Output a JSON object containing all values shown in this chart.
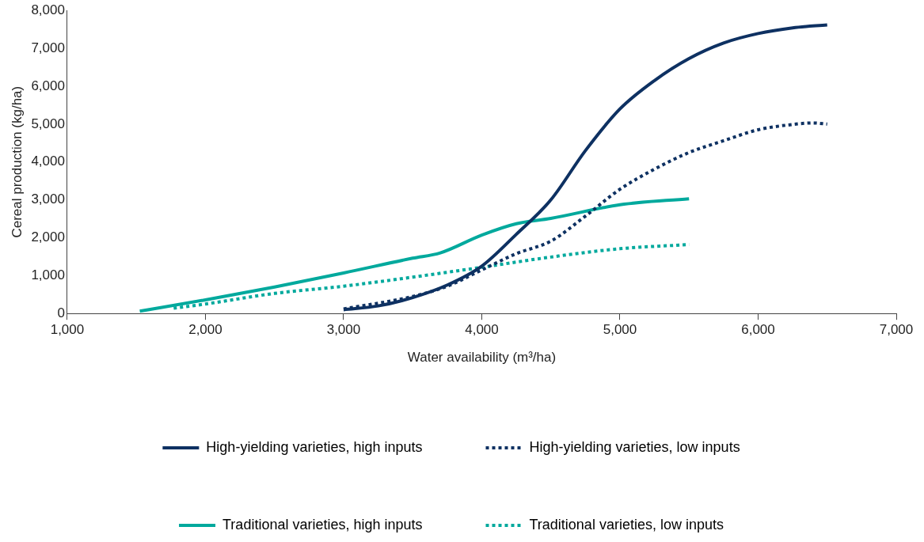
{
  "chart_data": {
    "type": "line",
    "xlabel": "Water availability (m³/ha)",
    "ylabel": "Cereal production (kg/ha)",
    "xlim": [
      1000,
      7000
    ],
    "xticks": [
      {
        "value": 1000,
        "label": "1,000"
      },
      {
        "value": 2000,
        "label": "2,000"
      },
      {
        "value": 3000,
        "label": "3,000"
      },
      {
        "value": 4000,
        "label": "4,000"
      },
      {
        "value": 5000,
        "label": "5,000"
      },
      {
        "value": 6000,
        "label": "6,000"
      },
      {
        "value": 7000,
        "label": "7,000"
      }
    ],
    "ylim": [
      0,
      8000
    ],
    "yticks": [
      0,
      {
        "value": 1000,
        "label": "1,000"
      },
      {
        "value": 2000,
        "label": "2,000"
      },
      {
        "value": 3000,
        "label": "3,000"
      },
      {
        "value": 4000,
        "label": "4,000"
      },
      {
        "value": 5000,
        "label": "5,000"
      },
      {
        "value": 6000,
        "label": "6,000"
      },
      {
        "value": 7000,
        "label": "7,000"
      },
      {
        "value": 8000,
        "label": "8,000"
      }
    ],
    "grid": false,
    "legend": "bottom",
    "marker": "none",
    "series": [
      {
        "name": "High-yielding varieties, high inputs",
        "color": "#0e3162",
        "line_style": "solid",
        "x": [
          3000,
          3250,
          3500,
          3750,
          4000,
          4250,
          4500,
          4750,
          5000,
          5250,
          5500,
          5750,
          6000,
          6250,
          6500
        ],
        "values": [
          100,
          200,
          420,
          750,
          1250,
          2090,
          3000,
          4300,
          5400,
          6150,
          6730,
          7140,
          7390,
          7540,
          7620
        ]
      },
      {
        "name": "High-yielding varieties, low inputs",
        "color": "#0e3162",
        "line_style": "dotted",
        "x": [
          3000,
          3500,
          3750,
          4000,
          4250,
          4500,
          4750,
          5000,
          5250,
          5500,
          5750,
          6000,
          6250,
          6400,
          6500
        ],
        "values": [
          120,
          450,
          720,
          1150,
          1580,
          1910,
          2570,
          3280,
          3810,
          4250,
          4560,
          4850,
          4990,
          5030,
          5000
        ]
      },
      {
        "name": "Traditional varieties, high inputs",
        "color": "#00a99d",
        "line_style": "solid",
        "x": [
          1525,
          2000,
          2500,
          3000,
          3500,
          3700,
          4000,
          4250,
          4500,
          5000,
          5500
        ],
        "values": [
          60,
          360,
          700,
          1070,
          1460,
          1600,
          2070,
          2370,
          2510,
          2870,
          3030
        ]
      },
      {
        "name": "Traditional varieties, low inputs",
        "color": "#00a99d",
        "line_style": "dotted",
        "x": [
          1770,
          2000,
          2500,
          3000,
          3500,
          4000,
          4500,
          5000,
          5500
        ],
        "values": [
          140,
          250,
          530,
          720,
          960,
          1220,
          1490,
          1710,
          1820
        ]
      }
    ]
  }
}
